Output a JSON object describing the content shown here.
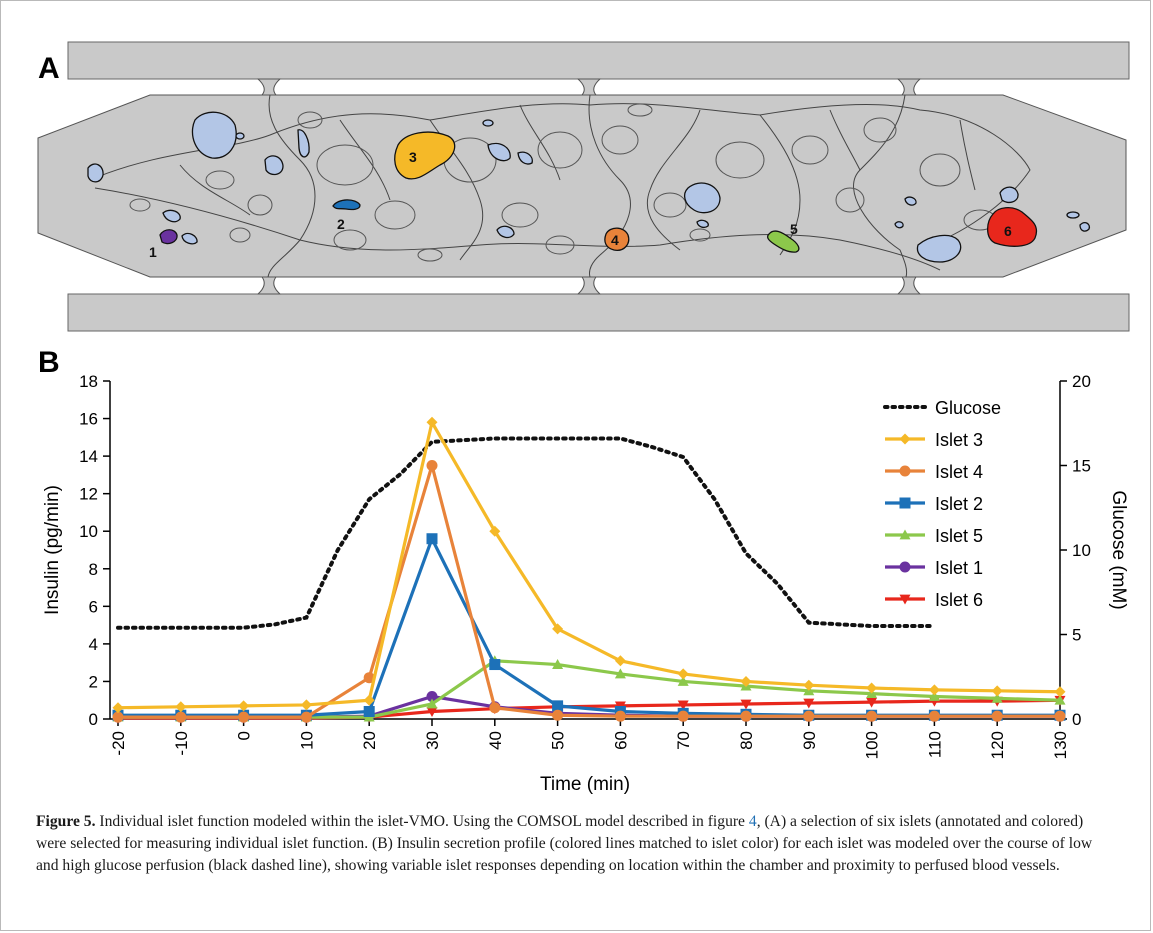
{
  "panel_a": {
    "label": "A",
    "islet_labels": [
      "1",
      "2",
      "3",
      "4",
      "5",
      "6"
    ]
  },
  "panel_b": {
    "label": "B"
  },
  "colors": {
    "islet_1": "#6a329f",
    "islet_2": "#1d71b8",
    "islet_3": "#f5b928",
    "islet_4": "#e8833a",
    "islet_5": "#8cc84b",
    "islet_6": "#e8271c",
    "glucose": "#111111",
    "chamber": "#c9c9c9",
    "other_islets": "#b3c6e6"
  },
  "chart_data": {
    "type": "line",
    "title": "",
    "xlabel": "Time (min)",
    "ylabel": "Insulin (pg/min)",
    "y2label": "Glucose (mM)",
    "x": [
      -20,
      -10,
      0,
      10,
      20,
      30,
      40,
      50,
      60,
      70,
      80,
      90,
      100,
      110,
      120,
      130
    ],
    "x_tick_labels": [
      "-20",
      "-10",
      "0",
      "10",
      "20",
      "30",
      "40",
      "50",
      "60",
      "70",
      "80",
      "90",
      "100",
      "110",
      "120",
      "130"
    ],
    "ylim": [
      0,
      18
    ],
    "y_ticks": [
      0,
      2,
      4,
      6,
      8,
      10,
      12,
      14,
      16,
      18
    ],
    "y_tick_labels": [
      "0",
      "2",
      "4",
      "6",
      "8",
      "10",
      "12",
      "14",
      "16",
      "18"
    ],
    "y2lim": [
      0,
      20
    ],
    "y2_ticks": [
      0,
      5,
      10,
      15,
      20
    ],
    "y2_tick_labels": [
      "0",
      "5",
      "10",
      "15",
      "20"
    ],
    "legend_position": "top-right",
    "grid": false,
    "glucose": {
      "name": "Glucose",
      "axis": "right",
      "x": [
        -20,
        -10,
        0,
        5,
        10,
        15,
        20,
        25,
        30,
        40,
        50,
        60,
        65,
        70,
        75,
        80,
        85,
        90,
        100,
        110
      ],
      "values": [
        5.4,
        5.4,
        5.4,
        5.6,
        6.0,
        10.0,
        13.0,
        14.5,
        16.4,
        16.6,
        16.6,
        16.6,
        16.1,
        15.5,
        13.0,
        9.8,
        8.0,
        5.7,
        5.5,
        5.5
      ]
    },
    "series": [
      {
        "name": "Islet 3",
        "marker": "diamond",
        "color": "#f5b928",
        "values": [
          0.6,
          0.65,
          0.7,
          0.75,
          1.0,
          15.8,
          10.0,
          4.8,
          3.1,
          2.4,
          2.0,
          1.8,
          1.65,
          1.55,
          1.5,
          1.45
        ]
      },
      {
        "name": "Islet 4",
        "marker": "circle",
        "color": "#e8833a",
        "values": [
          0.1,
          0.1,
          0.1,
          0.1,
          2.2,
          13.5,
          0.6,
          0.2,
          0.15,
          0.15,
          0.15,
          0.15,
          0.15,
          0.15,
          0.15,
          0.15
        ]
      },
      {
        "name": "Islet 2",
        "marker": "square",
        "color": "#1d71b8",
        "values": [
          0.2,
          0.2,
          0.2,
          0.2,
          0.4,
          9.6,
          2.9,
          0.7,
          0.4,
          0.3,
          0.25,
          0.2,
          0.2,
          0.2,
          0.2,
          0.2
        ]
      },
      {
        "name": "Islet 5",
        "marker": "triangle",
        "color": "#8cc84b",
        "values": [
          0.1,
          0.1,
          0.1,
          0.1,
          0.1,
          0.8,
          3.1,
          2.9,
          2.4,
          2.0,
          1.75,
          1.5,
          1.35,
          1.2,
          1.1,
          1.0
        ]
      },
      {
        "name": "Islet 1",
        "marker": "circle",
        "color": "#6a329f",
        "values": [
          0.1,
          0.1,
          0.1,
          0.1,
          0.15,
          1.2,
          0.65,
          0.3,
          0.2,
          0.15,
          0.15,
          0.15,
          0.15,
          0.15,
          0.15,
          0.15
        ]
      },
      {
        "name": "Islet 6",
        "marker": "triangle-down",
        "color": "#e8271c",
        "values": [
          0.05,
          0.05,
          0.05,
          0.05,
          0.1,
          0.4,
          0.55,
          0.65,
          0.7,
          0.75,
          0.8,
          0.85,
          0.9,
          0.95,
          0.95,
          1.0
        ]
      }
    ]
  },
  "caption": {
    "label": "Figure 5.",
    "text_1": " Individual islet function modeled within the islet-VMO. Using the COMSOL model described in figure ",
    "ref": "4",
    "text_2": ", (A) a selection of six islets (annotated and colored) were selected for measuring individual islet function. (B) Insulin secretion profile (colored lines matched to islet color) for each islet was modeled over the course of low and high glucose perfusion (black dashed line), showing variable islet responses depending on location within the chamber and proximity to perfused blood vessels."
  }
}
